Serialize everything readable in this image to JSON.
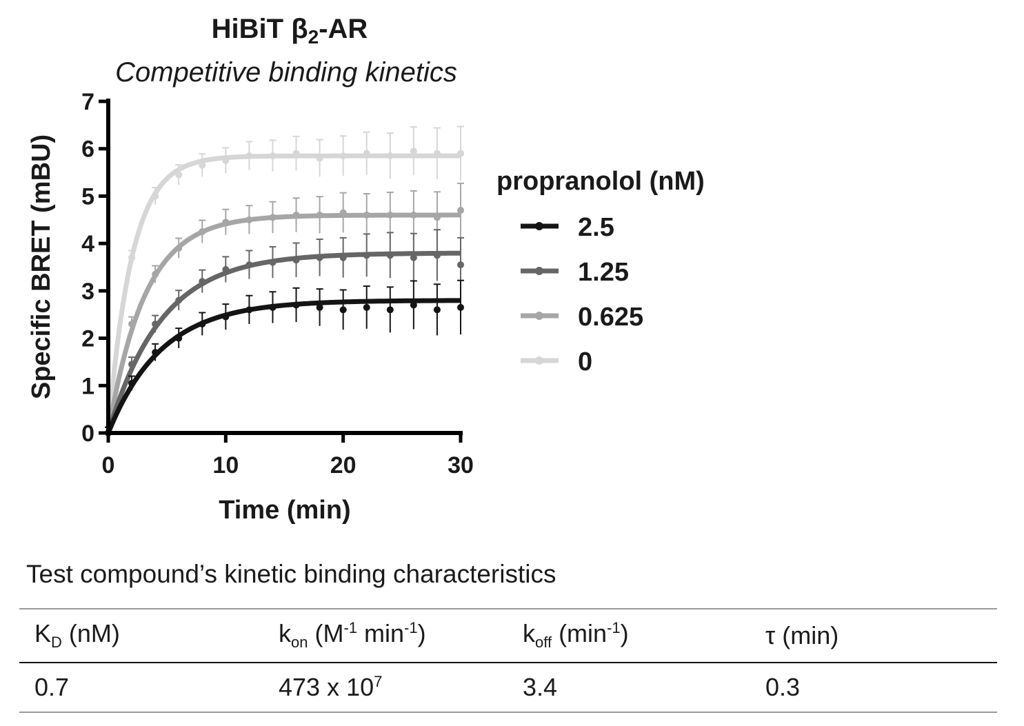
{
  "chart_data": {
    "type": "line",
    "title": "HiBiT β2-AR",
    "subtitle": "Competitive binding kinetics",
    "xlabel": "Time (min)",
    "ylabel": "Specific BRET (mBU)",
    "xlim": [
      0,
      30
    ],
    "ylim": [
      0,
      7
    ],
    "xticks": [
      "0",
      "10",
      "20",
      "30"
    ],
    "yticks": [
      "0",
      "1",
      "2",
      "3",
      "4",
      "5",
      "6",
      "7"
    ],
    "legend_title": "propranolol (nM)",
    "legend_position": "right",
    "grid": false,
    "series": [
      {
        "name": "2.5",
        "color": "#141414",
        "fit_plateau": 2.8,
        "fit_rate": 0.22,
        "x": [
          0,
          2,
          4,
          6,
          8,
          10,
          12,
          14,
          16,
          18,
          20,
          22,
          24,
          26,
          28,
          30
        ],
        "values": [
          0.0,
          1.05,
          1.7,
          2.0,
          2.3,
          2.45,
          2.6,
          2.65,
          2.7,
          2.65,
          2.6,
          2.65,
          2.6,
          2.7,
          2.6,
          2.65
        ]
      },
      {
        "name": "1.25",
        "color": "#666666",
        "fit_plateau": 3.8,
        "fit_rate": 0.22,
        "x": [
          0,
          2,
          4,
          6,
          8,
          10,
          12,
          14,
          16,
          18,
          20,
          22,
          24,
          26,
          28,
          30
        ],
        "values": [
          0.0,
          1.45,
          2.3,
          2.8,
          3.2,
          3.45,
          3.55,
          3.6,
          3.65,
          3.7,
          3.7,
          3.75,
          3.75,
          3.7,
          3.75,
          3.55
        ]
      },
      {
        "name": "0.625",
        "color": "#a6a6a6",
        "fit_plateau": 4.6,
        "fit_rate": 0.32,
        "x": [
          0,
          2,
          4,
          6,
          8,
          10,
          12,
          14,
          16,
          18,
          20,
          22,
          24,
          26,
          28,
          30
        ],
        "values": [
          0.0,
          2.3,
          3.35,
          3.9,
          4.25,
          4.45,
          4.5,
          4.55,
          4.6,
          4.6,
          4.65,
          4.6,
          4.6,
          4.6,
          4.55,
          4.7
        ]
      },
      {
        "name": "0",
        "color": "#d6d6d6",
        "fit_plateau": 5.85,
        "fit_rate": 0.5,
        "x": [
          0,
          2,
          4,
          6,
          8,
          10,
          12,
          14,
          16,
          18,
          20,
          22,
          24,
          26,
          28,
          30
        ],
        "values": [
          0.0,
          3.7,
          5.0,
          5.45,
          5.65,
          5.75,
          5.85,
          5.85,
          5.9,
          5.8,
          5.85,
          5.9,
          5.85,
          5.95,
          5.9,
          5.9
        ]
      }
    ]
  },
  "table": {
    "caption": "Test compound’s kinetic binding characteristics",
    "headers": [
      {
        "main": "K",
        "sub": "D",
        "rest": " (nM)"
      },
      {
        "main": "k",
        "sub": "on",
        "rest": " (M",
        "sup": "-1",
        "rest2": " min",
        "sup2": "-1",
        "rest3": ")"
      },
      {
        "main": "k",
        "sub": "off",
        "rest": " (min",
        "sup": "-1",
        "rest2": ")"
      },
      {
        "main": "τ (min)"
      }
    ],
    "row": {
      "kd": "0.7",
      "kon_base": "473 x 10",
      "kon_exp": "7",
      "koff": "3.4",
      "tau": "0.3"
    }
  }
}
